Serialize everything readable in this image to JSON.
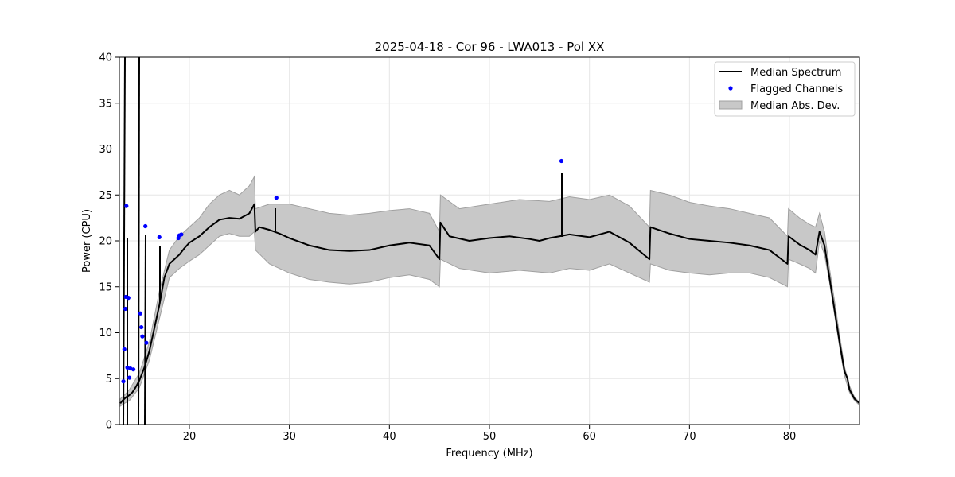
{
  "chart_data": {
    "type": "line",
    "title": "2025-04-18 - Cor 96 - LWA013 - Pol XX",
    "xlabel": "Frequency (MHz)",
    "ylabel": "Power (CPU)",
    "xlim": [
      13.0,
      87.0
    ],
    "ylim": [
      0,
      40
    ],
    "x_ticks": [
      20,
      30,
      40,
      50,
      60,
      70,
      80
    ],
    "y_ticks": [
      0,
      5,
      10,
      15,
      20,
      25,
      30,
      35,
      40
    ],
    "x_tick_labels": [
      "20",
      "30",
      "40",
      "50",
      "60",
      "70",
      "80"
    ],
    "y_tick_labels": [
      "0",
      "5",
      "10",
      "15",
      "20",
      "25",
      "30",
      "35",
      "40"
    ],
    "grid": true,
    "legend_position": "top-right",
    "legend": [
      "Median Spectrum",
      "Flagged Channels",
      "Median Abs. Dev."
    ],
    "colors": {
      "median": "#000000",
      "flagged": "#0000ff",
      "band_fill": "#c8c8c8",
      "band_edge": "#a0a0a0",
      "grid": "#e6e6e6"
    },
    "series": [
      {
        "name": "Median Spectrum",
        "kind": "line",
        "x": [
          13.1,
          13.3,
          13.5,
          13.7,
          14.0,
          14.3,
          14.6,
          15.0,
          15.5,
          16.0,
          16.5,
          17.0,
          17.5,
          18.0,
          18.5,
          19.0,
          19.5,
          20.0,
          21.0,
          22.0,
          23.0,
          24.0,
          25.0,
          26.0,
          26.5,
          26.6,
          27.0,
          28.0,
          28.5,
          29.0,
          30.0,
          32.0,
          34.0,
          36.0,
          38.0,
          40.0,
          42.0,
          44.0,
          45.0,
          45.1,
          46.0,
          48.0,
          50.0,
          52.0,
          54.0,
          55.0,
          56.0,
          57.0,
          58.0,
          60.0,
          62.0,
          64.0,
          66.0,
          66.1,
          68.0,
          70.0,
          72.0,
          74.0,
          76.0,
          78.0,
          79.8,
          79.9,
          81.0,
          82.0,
          82.6,
          83.0,
          83.5,
          84.0,
          84.5,
          85.0,
          85.5,
          85.8,
          86.0,
          86.5,
          87.0
        ],
        "y": [
          2.3,
          2.6,
          2.8,
          3.0,
          3.2,
          3.5,
          4.0,
          4.8,
          6.2,
          8.0,
          10.5,
          13.0,
          16.0,
          17.5,
          18.0,
          18.5,
          19.2,
          19.8,
          20.5,
          21.5,
          22.3,
          22.5,
          22.4,
          23.0,
          24.0,
          21.0,
          21.5,
          21.2,
          21.0,
          20.8,
          20.3,
          19.5,
          19.0,
          18.9,
          19.0,
          19.5,
          19.8,
          19.5,
          18.0,
          22.0,
          20.5,
          20.0,
          20.3,
          20.5,
          20.2,
          20.0,
          20.3,
          20.5,
          20.7,
          20.4,
          21.0,
          19.8,
          18.0,
          21.5,
          20.8,
          20.2,
          20.0,
          19.8,
          19.5,
          19.0,
          17.5,
          20.5,
          19.6,
          19.0,
          18.5,
          21.0,
          19.5,
          16.0,
          12.5,
          9.0,
          5.8,
          5.0,
          3.8,
          2.8,
          2.3
        ]
      },
      {
        "name": "Flagged Channels",
        "kind": "scatter",
        "x": [
          13.4,
          13.5,
          13.6,
          13.65,
          13.7,
          13.8,
          13.9,
          14.0,
          14.1,
          14.4,
          15.1,
          15.2,
          15.3,
          15.6,
          15.7,
          17.0,
          18.9,
          19.0,
          19.2,
          28.7,
          57.2
        ],
        "y": [
          4.7,
          8.2,
          12.6,
          13.9,
          23.8,
          6.2,
          13.8,
          5.1,
          6.1,
          6.0,
          12.1,
          10.6,
          9.6,
          21.6,
          8.9,
          20.4,
          20.3,
          20.6,
          20.7,
          24.7,
          28.7
        ]
      },
      {
        "name": "Median Abs. Dev.",
        "kind": "band",
        "x": [
          13.1,
          13.5,
          14.0,
          15.0,
          16.0,
          17.0,
          18.0,
          19.0,
          20.0,
          21.0,
          22.0,
          23.0,
          24.0,
          25.0,
          26.0,
          26.5,
          26.6,
          28.0,
          30.0,
          32.0,
          34.0,
          36.0,
          38.0,
          40.0,
          42.0,
          44.0,
          45.0,
          45.1,
          47.0,
          50.0,
          53.0,
          56.0,
          58.0,
          60.0,
          62.0,
          64.0,
          66.0,
          66.1,
          68.0,
          70.0,
          72.0,
          74.0,
          76.0,
          78.0,
          79.8,
          79.9,
          81.0,
          82.0,
          82.6,
          83.0,
          83.5,
          84.0,
          84.5,
          85.0,
          85.5,
          86.0,
          86.5,
          87.0
        ],
        "lower": [
          2.0,
          2.3,
          2.6,
          4.0,
          7.0,
          11.5,
          16.0,
          17.0,
          17.8,
          18.5,
          19.5,
          20.5,
          20.8,
          20.5,
          20.5,
          21.0,
          19.0,
          17.5,
          16.5,
          15.8,
          15.5,
          15.3,
          15.5,
          16.0,
          16.3,
          15.8,
          15.0,
          18.0,
          17.0,
          16.5,
          16.8,
          16.5,
          17.0,
          16.8,
          17.5,
          16.5,
          15.5,
          17.5,
          16.8,
          16.5,
          16.3,
          16.5,
          16.5,
          16.0,
          15.0,
          18.0,
          17.5,
          17.0,
          16.5,
          20.0,
          18.5,
          15.5,
          12.0,
          8.5,
          5.3,
          3.5,
          2.6,
          2.1
        ],
        "upper": [
          2.8,
          3.2,
          3.8,
          5.6,
          9.0,
          14.5,
          19.0,
          20.5,
          21.5,
          22.5,
          24.0,
          25.0,
          25.5,
          25.0,
          26.0,
          27.0,
          23.5,
          24.0,
          24.0,
          23.5,
          23.0,
          22.8,
          23.0,
          23.3,
          23.5,
          23.0,
          21.0,
          25.0,
          23.5,
          24.0,
          24.5,
          24.3,
          24.8,
          24.5,
          25.0,
          23.8,
          21.5,
          25.5,
          25.0,
          24.2,
          23.8,
          23.5,
          23.0,
          22.5,
          20.5,
          23.5,
          22.5,
          21.8,
          21.5,
          23.0,
          21.0,
          17.0,
          13.5,
          9.8,
          6.3,
          4.2,
          3.0,
          2.4
        ]
      }
    ]
  }
}
